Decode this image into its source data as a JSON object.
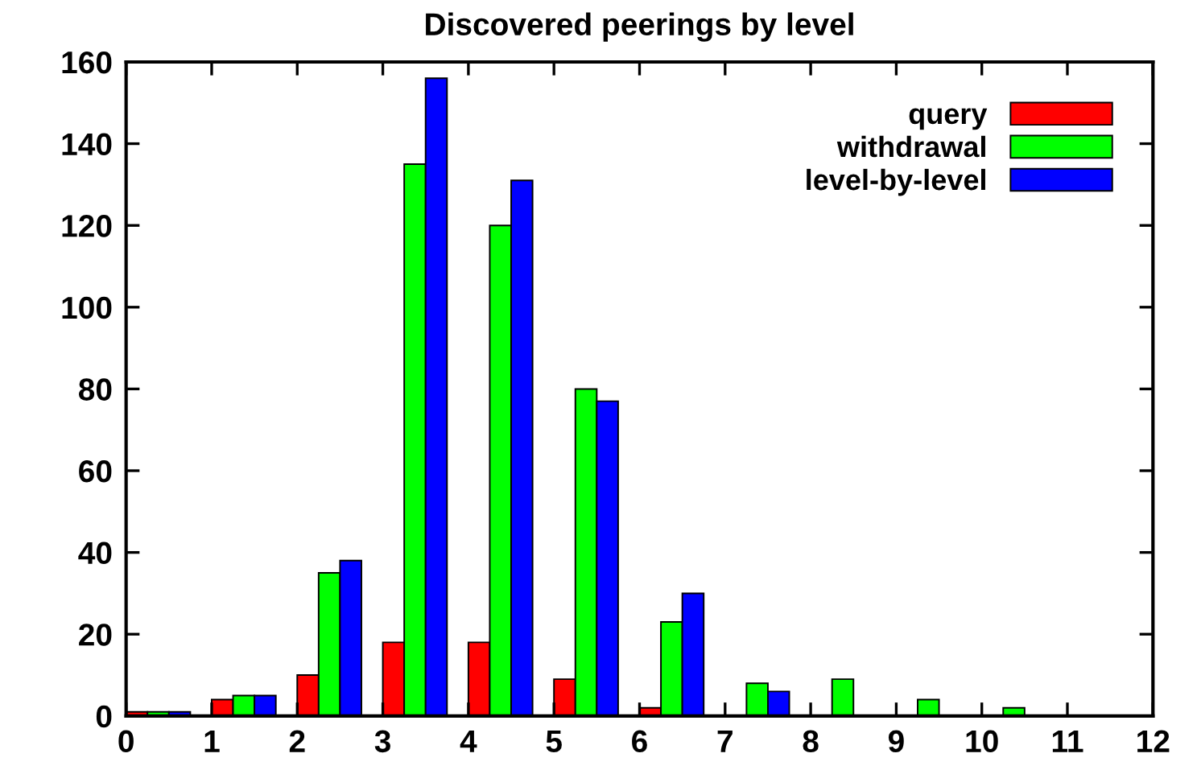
{
  "chart_data": {
    "type": "bar",
    "title": "Discovered peerings by level",
    "x": [
      0.375,
      1.375,
      2.375,
      3.375,
      4.375,
      5.375,
      6.375,
      7.375,
      8.375,
      9.375,
      10.375
    ],
    "series": [
      {
        "name": "query",
        "color": "#ff0000",
        "values": [
          1,
          4,
          10,
          18,
          18,
          9,
          2,
          null,
          null,
          null,
          null
        ]
      },
      {
        "name": "withdrawal",
        "color": "#00ff00",
        "values": [
          1,
          5,
          35,
          135,
          120,
          80,
          23,
          8,
          9,
          4,
          2
        ]
      },
      {
        "name": "level-by-level",
        "color": "#0000ff",
        "values": [
          1,
          5,
          38,
          156,
          131,
          77,
          30,
          6,
          null,
          null,
          null
        ]
      }
    ],
    "xlim": [
      0,
      12
    ],
    "xticks": [
      0,
      1,
      2,
      3,
      4,
      5,
      6,
      7,
      8,
      9,
      10,
      11,
      12
    ],
    "ylim": [
      0,
      160
    ],
    "yticks": [
      0,
      20,
      40,
      60,
      80,
      100,
      120,
      140,
      160
    ],
    "grid": false,
    "legend": "top right"
  }
}
